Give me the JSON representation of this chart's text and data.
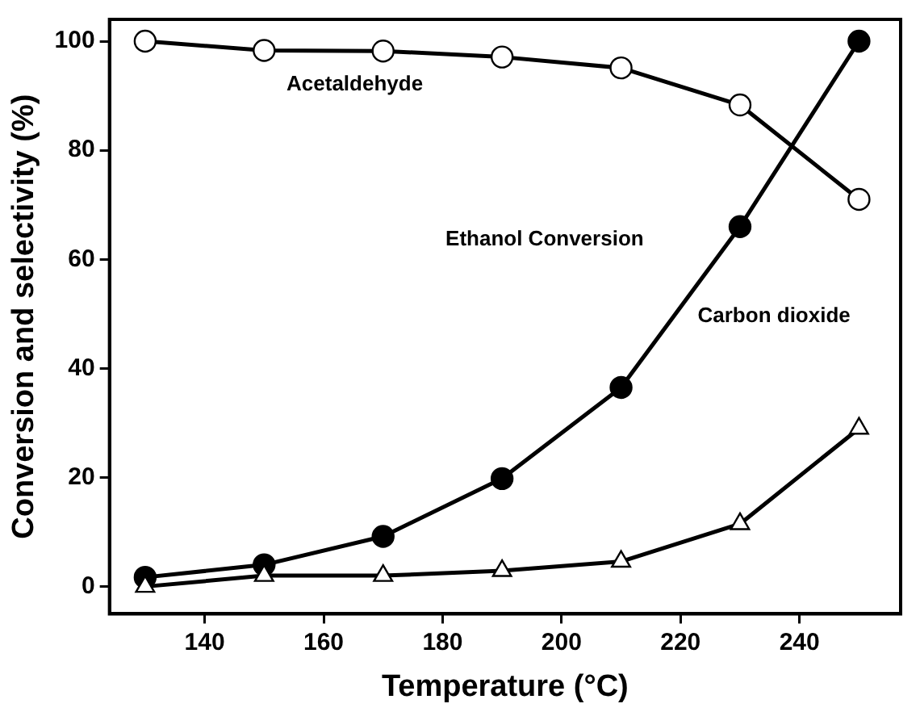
{
  "chart_data": {
    "type": "line",
    "xlabel": "Temperature (°C)",
    "ylabel": "Conversion and selectivity (%)",
    "x": [
      130,
      150,
      170,
      190,
      210,
      230,
      250
    ],
    "series": [
      {
        "color": "#000000",
        "marker": "circle",
        "values": [
          100,
          98.3,
          98.2,
          97.1,
          95.1,
          88.3,
          71
        ]
      },
      {
        "color": "#000000",
        "marker": "circle",
        "values": [
          1.7,
          4,
          9.2,
          19.8,
          36.5,
          66,
          100
        ]
      },
      {
        "color": "#000000",
        "marker": "triangle",
        "values": [
          0,
          2,
          2,
          2.9,
          4.6,
          11.5,
          29
        ]
      }
    ],
    "xlim": [
      124,
      257
    ],
    "xticks": [
      140,
      160,
      180,
      200,
      220,
      240
    ],
    "ylim": [
      -5,
      104
    ],
    "yticks": [
      0,
      20,
      40,
      60,
      80,
      100
    ],
    "grid": false,
    "legend": false,
    "line_style": "solid",
    "annotations": [
      "Acetaldehyde",
      "Ethanol Conversion",
      "Carbon dioxide"
    ]
  }
}
